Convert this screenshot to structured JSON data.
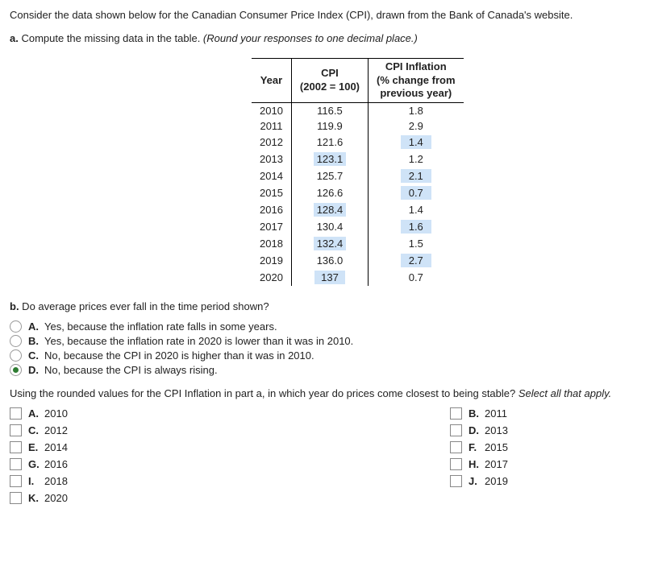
{
  "intro": {
    "p1": "Consider the data shown below for the Canadian Consumer Price Index (CPI), drawn from the Bank of Canada's website.",
    "p2_a": "a.",
    "p2_b": " Compute the missing data in the table. ",
    "p2_i": "(Round your responses to one decimal place.)"
  },
  "table": {
    "h_year": "Year",
    "h_cpi_l1": "CPI",
    "h_cpi_l2": "(2002 = 100)",
    "h_inf_l1": "CPI Inflation",
    "h_inf_l2": "(% change from",
    "h_inf_l3": "previous year)",
    "rows": [
      {
        "year": "2010",
        "cpi": "116.5",
        "cpi_fill": false,
        "inf": "1.8",
        "inf_fill": false
      },
      {
        "year": "2011",
        "cpi": "119.9",
        "cpi_fill": false,
        "inf": "2.9",
        "inf_fill": false
      },
      {
        "year": "2012",
        "cpi": "121.6",
        "cpi_fill": false,
        "inf": "1.4",
        "inf_fill": true
      },
      {
        "year": "2013",
        "cpi": "123.1",
        "cpi_fill": true,
        "inf": "1.2",
        "inf_fill": false
      },
      {
        "year": "2014",
        "cpi": "125.7",
        "cpi_fill": false,
        "inf": "2.1",
        "inf_fill": true
      },
      {
        "year": "2015",
        "cpi": "126.6",
        "cpi_fill": false,
        "inf": "0.7",
        "inf_fill": true
      },
      {
        "year": "2016",
        "cpi": "128.4",
        "cpi_fill": true,
        "inf": "1.4",
        "inf_fill": false
      },
      {
        "year": "2017",
        "cpi": "130.4",
        "cpi_fill": false,
        "inf": "1.6",
        "inf_fill": true
      },
      {
        "year": "2018",
        "cpi": "132.4",
        "cpi_fill": true,
        "inf": "1.5",
        "inf_fill": false
      },
      {
        "year": "2019",
        "cpi": "136.0",
        "cpi_fill": false,
        "inf": "2.7",
        "inf_fill": true
      },
      {
        "year": "2020",
        "cpi": "137",
        "cpi_fill": true,
        "inf": "0.7",
        "inf_fill": false
      }
    ]
  },
  "qb": {
    "prompt_b": "b.",
    "prompt_txt": " Do average prices ever fall in the time period shown?",
    "options": [
      {
        "k": "A.",
        "t": "Yes, because the inflation rate falls in some years.",
        "sel": false
      },
      {
        "k": "B.",
        "t": "Yes, because the inflation rate in 2020 is lower than it was in 2010.",
        "sel": false
      },
      {
        "k": "C.",
        "t": "No, because the CPI in 2020 is higher than it was in 2010.",
        "sel": false
      },
      {
        "k": "D.",
        "t": "No, because the CPI is always rising.",
        "sel": true
      }
    ]
  },
  "qc": {
    "prompt": "Using the rounded values for the CPI Inflation in part a, in which year do prices come closest to being stable? ",
    "prompt_i": "Select all that apply.",
    "options_left": [
      {
        "k": "A.",
        "t": "2010"
      },
      {
        "k": "C.",
        "t": "2012"
      },
      {
        "k": "E.",
        "t": "2014"
      },
      {
        "k": "G.",
        "t": "2016"
      },
      {
        "k": "I.",
        "t": "2018"
      },
      {
        "k": "K.",
        "t": "2020"
      }
    ],
    "options_right": [
      {
        "k": "B.",
        "t": "2011"
      },
      {
        "k": "D.",
        "t": "2013"
      },
      {
        "k": "F.",
        "t": "2015"
      },
      {
        "k": "H.",
        "t": "2017"
      },
      {
        "k": "J.",
        "t": "2019"
      }
    ]
  }
}
